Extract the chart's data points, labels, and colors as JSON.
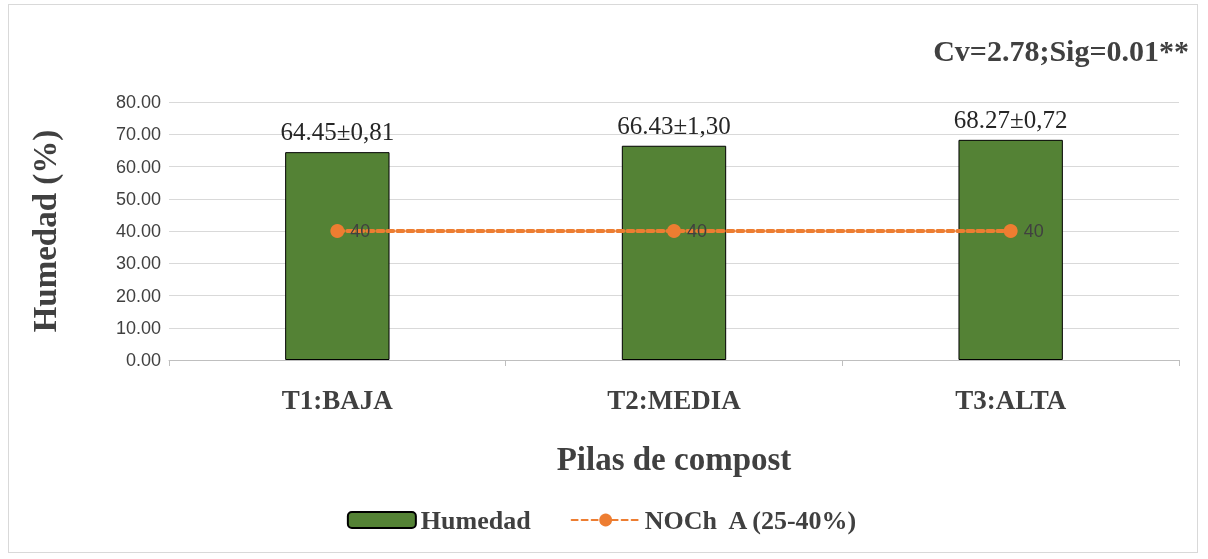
{
  "chart_data": {
    "type": "bar",
    "xlabel": "Pilas de compost",
    "ylabel": "Humedad (%)",
    "annotations": [
      "Cv=2.78;Sig=0.01**"
    ],
    "categories": [
      "T1:BAJA",
      "T2:MEDIA",
      "T3:ALTA"
    ],
    "series": [
      {
        "name": "Humedad",
        "color": "#548235",
        "values": [
          64.45,
          66.43,
          68.27
        ],
        "value_labels": [
          "64.45±0,81",
          "66.43±1,30",
          "68.27±0,72"
        ]
      },
      {
        "name": "NOCh  A (25-40%)",
        "type": "line",
        "color": "#ed7d31",
        "values": [
          40,
          40,
          40
        ],
        "value_labels": [
          "40",
          "40",
          "40"
        ],
        "marker": "circle",
        "line_style": "dashed"
      }
    ],
    "ylim": [
      0,
      80
    ],
    "yticks": [
      {
        "value": 0,
        "label": "0.00"
      },
      {
        "value": 10,
        "label": "10.00"
      },
      {
        "value": 20,
        "label": "20.00"
      },
      {
        "value": 30,
        "label": "30.00"
      },
      {
        "value": 40,
        "label": "40.00"
      },
      {
        "value": 50,
        "label": "50.00"
      },
      {
        "value": 60,
        "label": "60.00"
      },
      {
        "value": 70,
        "label": "70.00"
      },
      {
        "value": 80,
        "label": "80.00"
      }
    ],
    "grid": "y",
    "legend": "bottom"
  }
}
